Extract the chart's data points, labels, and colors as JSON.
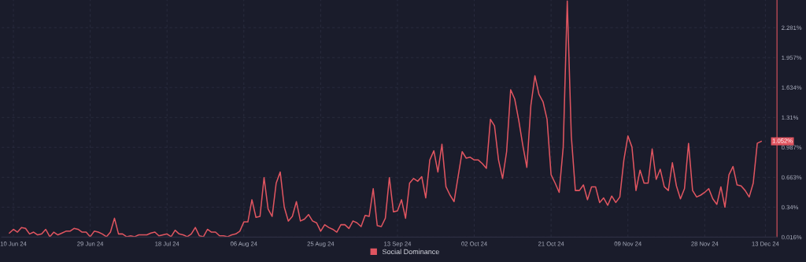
{
  "chart_data": {
    "type": "line",
    "x": [
      "2024-06-09",
      "2024-06-10",
      "2024-06-11",
      "2024-06-12",
      "2024-06-13",
      "2024-06-14",
      "2024-06-15",
      "2024-06-16",
      "2024-06-17",
      "2024-06-18",
      "2024-06-19",
      "2024-06-20",
      "2024-06-21",
      "2024-06-22",
      "2024-06-23",
      "2024-06-24",
      "2024-06-25",
      "2024-06-26",
      "2024-06-27",
      "2024-06-28",
      "2024-06-29",
      "2024-06-30",
      "2024-07-01",
      "2024-07-02",
      "2024-07-03",
      "2024-07-04",
      "2024-07-05",
      "2024-07-06",
      "2024-07-07",
      "2024-07-08",
      "2024-07-09",
      "2024-07-10",
      "2024-07-11",
      "2024-07-12",
      "2024-07-13",
      "2024-07-14",
      "2024-07-15",
      "2024-07-16",
      "2024-07-17",
      "2024-07-18",
      "2024-07-19",
      "2024-07-20",
      "2024-07-21",
      "2024-07-22",
      "2024-07-23",
      "2024-07-24",
      "2024-07-25",
      "2024-07-26",
      "2024-07-27",
      "2024-07-28",
      "2024-07-29",
      "2024-07-30",
      "2024-07-31",
      "2024-08-01",
      "2024-08-02",
      "2024-08-03",
      "2024-08-04",
      "2024-08-05",
      "2024-08-06",
      "2024-08-07",
      "2024-08-08",
      "2024-08-09",
      "2024-08-10",
      "2024-08-11",
      "2024-08-12",
      "2024-08-13",
      "2024-08-14",
      "2024-08-15",
      "2024-08-16",
      "2024-08-17",
      "2024-08-18",
      "2024-08-19",
      "2024-08-20",
      "2024-08-21",
      "2024-08-22",
      "2024-08-23",
      "2024-08-24",
      "2024-08-25",
      "2024-08-26",
      "2024-08-27",
      "2024-08-28",
      "2024-08-29",
      "2024-08-30",
      "2024-08-31",
      "2024-09-01",
      "2024-09-02",
      "2024-09-03",
      "2024-09-04",
      "2024-09-05",
      "2024-09-06",
      "2024-09-07",
      "2024-09-08",
      "2024-09-09",
      "2024-09-10",
      "2024-09-11",
      "2024-09-12",
      "2024-09-13",
      "2024-09-14",
      "2024-09-15",
      "2024-09-16",
      "2024-09-17",
      "2024-09-18",
      "2024-09-19",
      "2024-09-20",
      "2024-09-21",
      "2024-09-22",
      "2024-09-23",
      "2024-09-24",
      "2024-09-25",
      "2024-09-26",
      "2024-09-27",
      "2024-09-28",
      "2024-09-29",
      "2024-09-30",
      "2024-10-01",
      "2024-10-02",
      "2024-10-03",
      "2024-10-04",
      "2024-10-05",
      "2024-10-06",
      "2024-10-07",
      "2024-10-08",
      "2024-10-09",
      "2024-10-10",
      "2024-10-11",
      "2024-10-12",
      "2024-10-13",
      "2024-10-14",
      "2024-10-15",
      "2024-10-16",
      "2024-10-17",
      "2024-10-18",
      "2024-10-19",
      "2024-10-20",
      "2024-10-21",
      "2024-10-22",
      "2024-10-23",
      "2024-10-24",
      "2024-10-25",
      "2024-10-26",
      "2024-10-27",
      "2024-10-28",
      "2024-10-29",
      "2024-10-30",
      "2024-10-31",
      "2024-11-01",
      "2024-11-02",
      "2024-11-03",
      "2024-11-04",
      "2024-11-05",
      "2024-11-06",
      "2024-11-07",
      "2024-11-08",
      "2024-11-09",
      "2024-11-10",
      "2024-11-11",
      "2024-11-12",
      "2024-11-13",
      "2024-11-14",
      "2024-11-15",
      "2024-11-16",
      "2024-11-17",
      "2024-11-18",
      "2024-11-19",
      "2024-11-20",
      "2024-11-21",
      "2024-11-22",
      "2024-11-23",
      "2024-11-24",
      "2024-11-25",
      "2024-11-26",
      "2024-11-27",
      "2024-11-28",
      "2024-11-29",
      "2024-11-30",
      "2024-12-01",
      "2024-12-02",
      "2024-12-03",
      "2024-12-04",
      "2024-12-05",
      "2024-12-06",
      "2024-12-07",
      "2024-12-08",
      "2024-12-09",
      "2024-12-10",
      "2024-12-11",
      "2024-12-12"
    ],
    "series": [
      {
        "name": "Social Dominance",
        "color": "#e05560",
        "values": [
          0.06,
          0.1,
          0.07,
          0.12,
          0.11,
          0.05,
          0.07,
          0.04,
          0.05,
          0.1,
          0.02,
          0.07,
          0.04,
          0.06,
          0.08,
          0.08,
          0.11,
          0.1,
          0.07,
          0.07,
          0.02,
          0.08,
          0.07,
          0.05,
          0.02,
          0.07,
          0.22,
          0.05,
          0.05,
          0.02,
          0.03,
          0.02,
          0.04,
          0.04,
          0.04,
          0.06,
          0.07,
          0.03,
          0.04,
          0.05,
          0.02,
          0.09,
          0.05,
          0.04,
          0.02,
          0.05,
          0.12,
          0.03,
          0.02,
          0.1,
          0.07,
          0.07,
          0.03,
          0.03,
          0.02,
          0.04,
          0.05,
          0.08,
          0.18,
          0.18,
          0.42,
          0.23,
          0.24,
          0.66,
          0.32,
          0.24,
          0.6,
          0.72,
          0.34,
          0.19,
          0.24,
          0.4,
          0.19,
          0.21,
          0.26,
          0.19,
          0.17,
          0.08,
          0.15,
          0.12,
          0.1,
          0.07,
          0.15,
          0.15,
          0.11,
          0.19,
          0.17,
          0.13,
          0.25,
          0.24,
          0.54,
          0.14,
          0.13,
          0.22,
          0.66,
          0.29,
          0.3,
          0.42,
          0.22,
          0.6,
          0.65,
          0.62,
          0.67,
          0.44,
          0.85,
          0.95,
          0.72,
          1.02,
          0.56,
          0.47,
          0.4,
          0.67,
          0.94,
          0.87,
          0.88,
          0.85,
          0.85,
          0.81,
          0.76,
          1.29,
          1.22,
          0.85,
          0.65,
          0.94,
          1.61,
          1.51,
          1.28,
          1.01,
          0.77,
          1.44,
          1.76,
          1.56,
          1.48,
          1.29,
          0.69,
          0.6,
          0.5,
          0.99,
          2.57,
          1.11,
          0.52,
          0.52,
          0.58,
          0.42,
          0.56,
          0.56,
          0.39,
          0.44,
          0.36,
          0.46,
          0.39,
          0.45,
          0.85,
          1.11,
          0.99,
          0.52,
          0.74,
          0.6,
          0.6,
          0.97,
          0.64,
          0.75,
          0.56,
          0.52,
          0.82,
          0.57,
          0.43,
          0.54,
          1.03,
          0.52,
          0.45,
          0.47,
          0.5,
          0.54,
          0.43,
          0.37,
          0.56,
          0.34,
          0.69,
          0.78,
          0.58,
          0.57,
          0.52,
          0.45,
          0.6,
          1.03,
          1.052
        ]
      }
    ],
    "xlim": [
      "2024-06-07T02:00",
      "2024-12-15T21:00"
    ],
    "xticks": [
      {
        "value": "2024-06-10",
        "label": "10 Jun 24"
      },
      {
        "value": "2024-06-29",
        "label": "29 Jun 24"
      },
      {
        "value": "2024-07-18",
        "label": "18 Jul 24"
      },
      {
        "value": "2024-08-06",
        "label": "06 Aug 24"
      },
      {
        "value": "2024-08-25",
        "label": "25 Aug 24"
      },
      {
        "value": "2024-09-13",
        "label": "13 Sep 24"
      },
      {
        "value": "2024-10-02",
        "label": "02 Oct 24"
      },
      {
        "value": "2024-10-21",
        "label": "21 Oct 24"
      },
      {
        "value": "2024-11-09",
        "label": "09 Nov 24"
      },
      {
        "value": "2024-11-28",
        "label": "28 Nov 24"
      },
      {
        "value": "2024-12-13",
        "label": "13 Dec 24"
      }
    ],
    "ylim": [
      0.016,
      2.58
    ],
    "yticks": [
      {
        "value": 0.016,
        "label": "0.016%"
      },
      {
        "value": 0.34,
        "label": "0.34%"
      },
      {
        "value": 0.663,
        "label": "0.663%"
      },
      {
        "value": 0.987,
        "label": "0.987%"
      },
      {
        "value": 1.31,
        "label": "1.31%"
      },
      {
        "value": 1.634,
        "label": "1.634%"
      },
      {
        "value": 1.957,
        "label": "1.957%"
      },
      {
        "value": 2.281,
        "label": "2.281%"
      }
    ],
    "annotations": [
      {
        "text": "1.052%",
        "x": "2024-12-12",
        "y": 1.052
      }
    ],
    "grid": true,
    "legend": "bottom",
    "marker": "none",
    "line_style": "solid"
  }
}
